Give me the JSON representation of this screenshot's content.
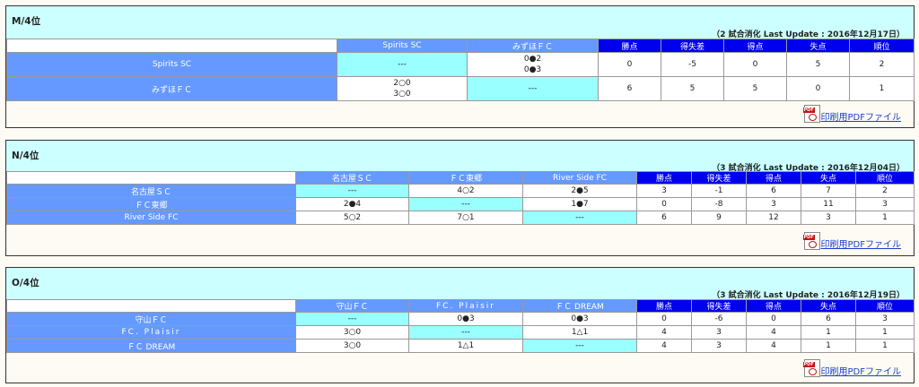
{
  "pdf_link_label": "印刷用PDFファイル",
  "pdf_icon_tag": "PDF",
  "stat_headers": [
    "勝点",
    "得失差",
    "得点",
    "失点",
    "順位"
  ],
  "blocks": [
    {
      "title": "M/4位",
      "meta": "（2 試合消化 Last Update : 2016年12月17日）",
      "team_headers": [
        "Spirits SC",
        "みずほＦＣ"
      ],
      "rows": [
        {
          "name": "Spirits SC",
          "cells": [
            "---",
            "0●2\n0●3"
          ],
          "stats": [
            "0",
            "-5",
            "0",
            "5",
            "2"
          ]
        },
        {
          "name": "みずほＦＣ",
          "cells": [
            "2○0\n3○0",
            "---"
          ],
          "stats": [
            "6",
            "5",
            "5",
            "0",
            "1"
          ]
        }
      ]
    },
    {
      "title": "N/4位",
      "meta": "（3 試合消化 Last Update : 2016年12月04日）",
      "team_headers": [
        "名古屋ＳＣ",
        "ＦＣ東郷",
        "River Side FC"
      ],
      "rows": [
        {
          "name": "名古屋ＳＣ",
          "cells": [
            "---",
            "4○2",
            "2●5"
          ],
          "stats": [
            "3",
            "-1",
            "6",
            "7",
            "2"
          ]
        },
        {
          "name": "ＦＣ東郷",
          "cells": [
            "2●4",
            "---",
            "1●7"
          ],
          "stats": [
            "0",
            "-8",
            "3",
            "11",
            "3"
          ]
        },
        {
          "name": "River Side FC",
          "cells": [
            "5○2",
            "7○1",
            "---"
          ],
          "stats": [
            "6",
            "9",
            "12",
            "3",
            "1"
          ]
        }
      ]
    },
    {
      "title": "O/4位",
      "meta": "（3 試合消化 Last Update : 2016年12月19日）",
      "team_headers": [
        "守山ＦＣ",
        "FC. Plaisir",
        "ＦＣ DREAM"
      ],
      "rows": [
        {
          "name": "守山ＦＣ",
          "cells": [
            "---",
            "0●3",
            "0●3"
          ],
          "stats": [
            "0",
            "-6",
            "0",
            "6",
            "3"
          ]
        },
        {
          "name": "FC. Plaisir",
          "cells": [
            "3○0",
            "---",
            "1△1"
          ],
          "stats": [
            "4",
            "3",
            "4",
            "1",
            "1"
          ]
        },
        {
          "name": "ＦＣ DREAM",
          "cells": [
            "3○0",
            "1△1",
            "---"
          ],
          "stats": [
            "4",
            "3",
            "4",
            "1",
            "1"
          ]
        }
      ]
    }
  ]
}
